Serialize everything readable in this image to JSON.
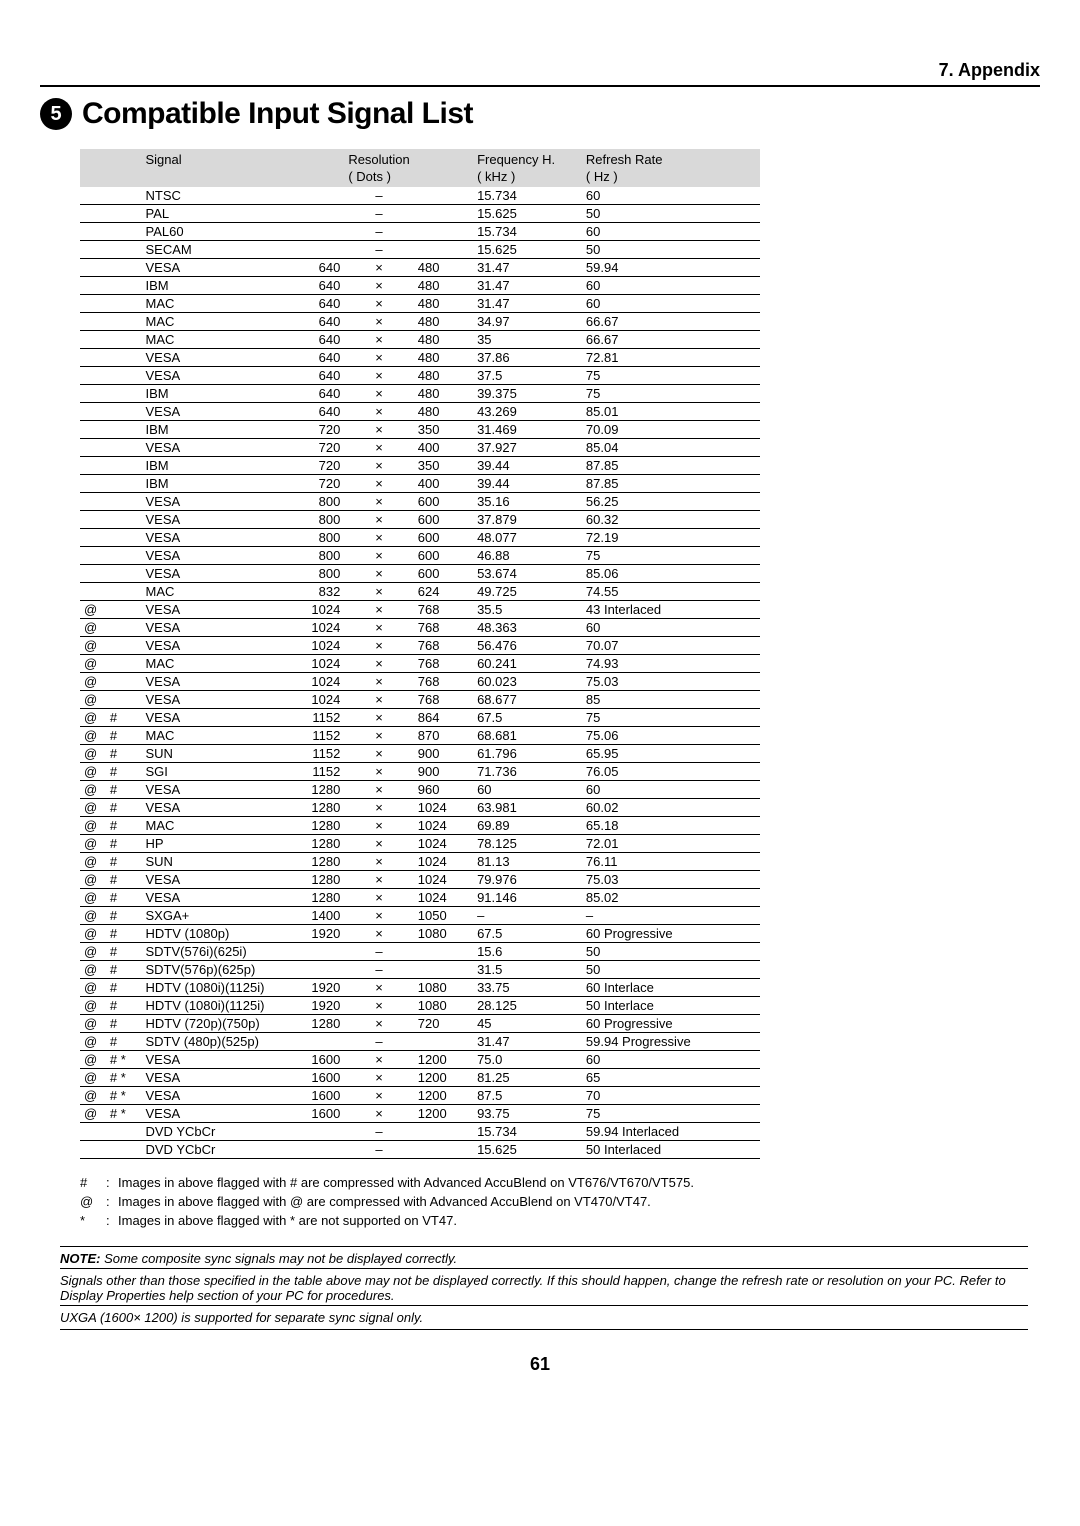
{
  "header": {
    "section": "7. Appendix"
  },
  "title": {
    "number": "5",
    "text": "Compatible Input Signal List"
  },
  "tableHeader": {
    "signal": "Signal",
    "resolution": "Resolution",
    "resolution_sub": "( Dots )",
    "freq": "Frequency H.",
    "freq_sub": "( kHz )",
    "refresh": "Refresh Rate",
    "refresh_sub": "( Hz )"
  },
  "rows": [
    {
      "at": "",
      "hs": "",
      "sig": "NTSC",
      "rw": "",
      "x": "–",
      "rh": "",
      "freq": "15.734",
      "ref": "60"
    },
    {
      "at": "",
      "hs": "",
      "sig": "PAL",
      "rw": "",
      "x": "–",
      "rh": "",
      "freq": "15.625",
      "ref": "50"
    },
    {
      "at": "",
      "hs": "",
      "sig": "PAL60",
      "rw": "",
      "x": "–",
      "rh": "",
      "freq": "15.734",
      "ref": "60"
    },
    {
      "at": "",
      "hs": "",
      "sig": "SECAM",
      "rw": "",
      "x": "–",
      "rh": "",
      "freq": "15.625",
      "ref": "50"
    },
    {
      "at": "",
      "hs": "",
      "sig": "VESA",
      "rw": "640",
      "x": "×",
      "rh": "480",
      "freq": "31.47",
      "ref": "59.94"
    },
    {
      "at": "",
      "hs": "",
      "sig": "IBM",
      "rw": "640",
      "x": "×",
      "rh": "480",
      "freq": "31.47",
      "ref": "60"
    },
    {
      "at": "",
      "hs": "",
      "sig": "MAC",
      "rw": "640",
      "x": "×",
      "rh": "480",
      "freq": "31.47",
      "ref": "60"
    },
    {
      "at": "",
      "hs": "",
      "sig": "MAC",
      "rw": "640",
      "x": "×",
      "rh": "480",
      "freq": "34.97",
      "ref": "66.67"
    },
    {
      "at": "",
      "hs": "",
      "sig": "MAC",
      "rw": "640",
      "x": "×",
      "rh": "480",
      "freq": "35",
      "ref": "66.67"
    },
    {
      "at": "",
      "hs": "",
      "sig": "VESA",
      "rw": "640",
      "x": "×",
      "rh": "480",
      "freq": "37.86",
      "ref": "72.81"
    },
    {
      "at": "",
      "hs": "",
      "sig": "VESA",
      "rw": "640",
      "x": "×",
      "rh": "480",
      "freq": "37.5",
      "ref": "75"
    },
    {
      "at": "",
      "hs": "",
      "sig": "IBM",
      "rw": "640",
      "x": "×",
      "rh": "480",
      "freq": "39.375",
      "ref": "75"
    },
    {
      "at": "",
      "hs": "",
      "sig": "VESA",
      "rw": "640",
      "x": "×",
      "rh": "480",
      "freq": "43.269",
      "ref": "85.01"
    },
    {
      "at": "",
      "hs": "",
      "sig": "IBM",
      "rw": "720",
      "x": "×",
      "rh": "350",
      "freq": "31.469",
      "ref": "70.09"
    },
    {
      "at": "",
      "hs": "",
      "sig": "VESA",
      "rw": "720",
      "x": "×",
      "rh": "400",
      "freq": "37.927",
      "ref": "85.04"
    },
    {
      "at": "",
      "hs": "",
      "sig": "IBM",
      "rw": "720",
      "x": "×",
      "rh": "350",
      "freq": "39.44",
      "ref": "87.85"
    },
    {
      "at": "",
      "hs": "",
      "sig": "IBM",
      "rw": "720",
      "x": "×",
      "rh": "400",
      "freq": "39.44",
      "ref": "87.85"
    },
    {
      "at": "",
      "hs": "",
      "sig": "VESA",
      "rw": "800",
      "x": "×",
      "rh": "600",
      "freq": "35.16",
      "ref": "56.25"
    },
    {
      "at": "",
      "hs": "",
      "sig": "VESA",
      "rw": "800",
      "x": "×",
      "rh": "600",
      "freq": "37.879",
      "ref": "60.32"
    },
    {
      "at": "",
      "hs": "",
      "sig": "VESA",
      "rw": "800",
      "x": "×",
      "rh": "600",
      "freq": "48.077",
      "ref": "72.19"
    },
    {
      "at": "",
      "hs": "",
      "sig": "VESA",
      "rw": "800",
      "x": "×",
      "rh": "600",
      "freq": "46.88",
      "ref": "75"
    },
    {
      "at": "",
      "hs": "",
      "sig": "VESA",
      "rw": "800",
      "x": "×",
      "rh": "600",
      "freq": "53.674",
      "ref": "85.06"
    },
    {
      "at": "",
      "hs": "",
      "sig": "MAC",
      "rw": "832",
      "x": "×",
      "rh": "624",
      "freq": "49.725",
      "ref": "74.55"
    },
    {
      "at": "@",
      "hs": "",
      "sig": "VESA",
      "rw": "1024",
      "x": "×",
      "rh": "768",
      "freq": "35.5",
      "ref": "43 Interlaced"
    },
    {
      "at": "@",
      "hs": "",
      "sig": "VESA",
      "rw": "1024",
      "x": "×",
      "rh": "768",
      "freq": "48.363",
      "ref": "60"
    },
    {
      "at": "@",
      "hs": "",
      "sig": "VESA",
      "rw": "1024",
      "x": "×",
      "rh": "768",
      "freq": "56.476",
      "ref": "70.07"
    },
    {
      "at": "@",
      "hs": "",
      "sig": "MAC",
      "rw": "1024",
      "x": "×",
      "rh": "768",
      "freq": "60.241",
      "ref": "74.93"
    },
    {
      "at": "@",
      "hs": "",
      "sig": "VESA",
      "rw": "1024",
      "x": "×",
      "rh": "768",
      "freq": "60.023",
      "ref": "75.03"
    },
    {
      "at": "@",
      "hs": "",
      "sig": "VESA",
      "rw": "1024",
      "x": "×",
      "rh": "768",
      "freq": "68.677",
      "ref": "85"
    },
    {
      "at": "@",
      "hs": "#",
      "sig": "VESA",
      "rw": "1152",
      "x": "×",
      "rh": "864",
      "freq": "67.5",
      "ref": "75"
    },
    {
      "at": "@",
      "hs": "#",
      "sig": "MAC",
      "rw": "1152",
      "x": "×",
      "rh": "870",
      "freq": "68.681",
      "ref": "75.06"
    },
    {
      "at": "@",
      "hs": "#",
      "sig": "SUN",
      "rw": "1152",
      "x": "×",
      "rh": "900",
      "freq": "61.796",
      "ref": "65.95"
    },
    {
      "at": "@",
      "hs": "#",
      "sig": "SGI",
      "rw": "1152",
      "x": "×",
      "rh": "900",
      "freq": "71.736",
      "ref": "76.05"
    },
    {
      "at": "@",
      "hs": "#",
      "sig": "VESA",
      "rw": "1280",
      "x": "×",
      "rh": "960",
      "freq": "60",
      "ref": "60"
    },
    {
      "at": "@",
      "hs": "#",
      "sig": "VESA",
      "rw": "1280",
      "x": "×",
      "rh": "1024",
      "freq": "63.981",
      "ref": "60.02"
    },
    {
      "at": "@",
      "hs": "#",
      "sig": "MAC",
      "rw": "1280",
      "x": "×",
      "rh": "1024",
      "freq": "69.89",
      "ref": "65.18"
    },
    {
      "at": "@",
      "hs": "#",
      "sig": "HP",
      "rw": "1280",
      "x": "×",
      "rh": "1024",
      "freq": "78.125",
      "ref": "72.01"
    },
    {
      "at": "@",
      "hs": "#",
      "sig": "SUN",
      "rw": "1280",
      "x": "×",
      "rh": "1024",
      "freq": "81.13",
      "ref": "76.11"
    },
    {
      "at": "@",
      "hs": "#",
      "sig": "VESA",
      "rw": "1280",
      "x": "×",
      "rh": "1024",
      "freq": "79.976",
      "ref": "75.03"
    },
    {
      "at": "@",
      "hs": "#",
      "sig": "VESA",
      "rw": "1280",
      "x": "×",
      "rh": "1024",
      "freq": "91.146",
      "ref": "85.02"
    },
    {
      "at": "@",
      "hs": "#",
      "sig": "SXGA+",
      "rw": "1400",
      "x": "×",
      "rh": "1050",
      "freq": "–",
      "ref": "–"
    },
    {
      "at": "@",
      "hs": "#",
      "sig": "HDTV (1080p)",
      "rw": "1920",
      "x": "×",
      "rh": "1080",
      "freq": "67.5",
      "ref": "60 Progressive"
    },
    {
      "at": "@",
      "hs": "#",
      "sig": "SDTV(576i)(625i)",
      "rw": "",
      "x": "–",
      "rh": "",
      "freq": "15.6",
      "ref": "50"
    },
    {
      "at": "@",
      "hs": "#",
      "sig": "SDTV(576p)(625p)",
      "rw": "",
      "x": "–",
      "rh": "",
      "freq": "31.5",
      "ref": "50"
    },
    {
      "at": "@",
      "hs": "#",
      "sig": "HDTV (1080i)(1125i)",
      "rw": "1920",
      "x": "×",
      "rh": "1080",
      "freq": "33.75",
      "ref": "60 Interlace"
    },
    {
      "at": "@",
      "hs": "#",
      "sig": "HDTV (1080i)(1125i)",
      "rw": "1920",
      "x": "×",
      "rh": "1080",
      "freq": "28.125",
      "ref": "50 Interlace"
    },
    {
      "at": "@",
      "hs": "#",
      "sig": "HDTV (720p)(750p)",
      "rw": "1280",
      "x": "×",
      "rh": "720",
      "freq": "45",
      "ref": "60 Progressive"
    },
    {
      "at": "@",
      "hs": "#",
      "sig": "SDTV (480p)(525p)",
      "rw": "",
      "x": "–",
      "rh": "",
      "freq": "31.47",
      "ref": "59.94 Progressive"
    },
    {
      "at": "@",
      "hs": "# *",
      "sig": "VESA",
      "rw": "1600",
      "x": "×",
      "rh": "1200",
      "freq": "75.0",
      "ref": "60"
    },
    {
      "at": "@",
      "hs": "# *",
      "sig": "VESA",
      "rw": "1600",
      "x": "×",
      "rh": "1200",
      "freq": "81.25",
      "ref": "65"
    },
    {
      "at": "@",
      "hs": "# *",
      "sig": "VESA",
      "rw": "1600",
      "x": "×",
      "rh": "1200",
      "freq": "87.5",
      "ref": "70"
    },
    {
      "at": "@",
      "hs": "# *",
      "sig": "VESA",
      "rw": "1600",
      "x": "×",
      "rh": "1200",
      "freq": "93.75",
      "ref": "75"
    },
    {
      "at": "",
      "hs": "",
      "sig": "DVD YCbCr",
      "rw": "",
      "x": "–",
      "rh": "",
      "freq": "15.734",
      "ref": "59.94 Interlaced"
    },
    {
      "at": "",
      "hs": "",
      "sig": "DVD YCbCr",
      "rw": "",
      "x": "–",
      "rh": "",
      "freq": "15.625",
      "ref": "50 Interlaced"
    }
  ],
  "footnotes": [
    {
      "sym": "#",
      "text": "Images in above flagged with # are compressed with Advanced AccuBlend on VT676/VT670/VT575."
    },
    {
      "sym": "@",
      "text": "Images in above flagged with @ are compressed with Advanced AccuBlend on VT470/VT47."
    },
    {
      "sym": "*",
      "text": "Images in above flagged with * are not supported on VT47."
    }
  ],
  "notes": {
    "lead": "NOTE:",
    "n1": " Some composite sync signals may not be displayed correctly.",
    "n2": "Signals other than those specified in the table above may not be displayed correctly. If this should happen, change the refresh rate or resolution on your PC. Refer to Display Properties help section of your PC for procedures.",
    "n3": "UXGA (1600× 1200) is supported for separate sync signal only."
  },
  "pageNumber": "61"
}
